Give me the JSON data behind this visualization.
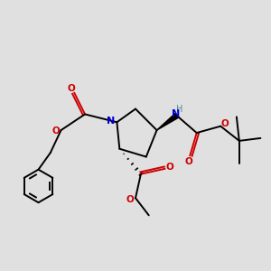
{
  "background_color": "#e0e0e0",
  "atom_colors": {
    "C": "#000000",
    "N": "#0000cc",
    "O": "#cc0000",
    "H": "#4a9090"
  },
  "figsize": [
    3.0,
    3.0
  ],
  "dpi": 100,
  "lw": 1.4,
  "fs": 7.0
}
